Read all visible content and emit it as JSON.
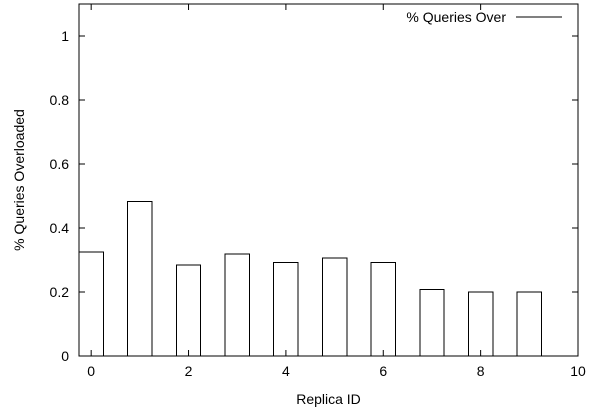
{
  "chart_data": {
    "type": "bar",
    "xlabel": "Replica ID",
    "ylabel": "% Queries Overloaded",
    "xlim": [
      -0.25,
      10
    ],
    "ylim": [
      0,
      1.1
    ],
    "x": [
      0,
      1,
      2,
      3,
      4,
      5,
      6,
      7,
      8,
      9
    ],
    "x_ticks": [
      0,
      2,
      4,
      6,
      8,
      10
    ],
    "x_tick_labels": [
      "0",
      "2",
      "4",
      "6",
      "8",
      "10"
    ],
    "y_ticks": [
      0,
      0.2,
      0.4,
      0.6,
      0.8,
      1
    ],
    "y_tick_labels": [
      "0",
      "0.2",
      "0.4",
      "0.6",
      "0.8",
      "1"
    ],
    "series": [
      {
        "name": "% Queries Over",
        "values": [
          0.325,
          0.483,
          0.285,
          0.318,
          0.292,
          0.307,
          0.292,
          0.208,
          0.2,
          0.2
        ]
      }
    ],
    "grid": false,
    "legend_position": "top-right",
    "colors": {
      "bar_fill": "#ffffff",
      "bar_stroke": "#000000",
      "axis": "#000000"
    }
  }
}
